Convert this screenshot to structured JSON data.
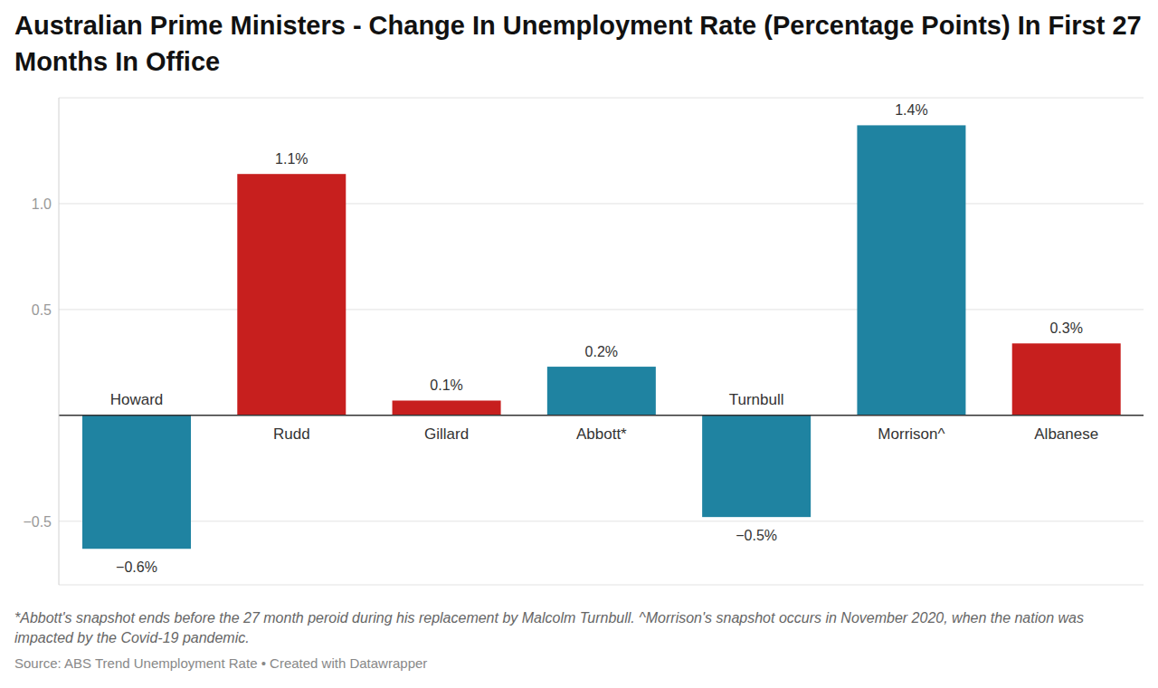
{
  "chart_data": {
    "type": "bar",
    "title": "Australian Prime Ministers - Change In Unemployment Rate (Percentage Points) In First 27 Months In Office",
    "categories": [
      "Howard",
      "Rudd",
      "Gillard",
      "Abbott*",
      "Turnbull",
      "Morrison^",
      "Albanese"
    ],
    "values": [
      -0.63,
      1.14,
      0.07,
      0.23,
      -0.48,
      1.37,
      0.34
    ],
    "value_labels": [
      "−0.6%",
      "1.1%",
      "0.1%",
      "0.2%",
      "−0.5%",
      "1.4%",
      "0.3%"
    ],
    "colors": [
      "#1f83a1",
      "#c71f1e",
      "#c71f1e",
      "#1f83a1",
      "#1f83a1",
      "#1f83a1",
      "#c71f1e"
    ],
    "ylim": [
      -0.8,
      1.5
    ],
    "yticks": [
      {
        "value": -0.5,
        "label": "−0.5"
      },
      0.5,
      {
        "value": 1,
        "label": "1.0"
      }
    ],
    "grid": true,
    "data_labels": true,
    "notes": [
      "*Abbott's snapshot ends before the 27 month peroid during his replacement by Malcolm Turnbull. ^Morrison's snapshot occurs in November 2020, when the nation was impacted by the Covid-19 pandemic."
    ],
    "source": "Source: ABS Trend Unemployment Rate • Created with Datawrapper"
  }
}
